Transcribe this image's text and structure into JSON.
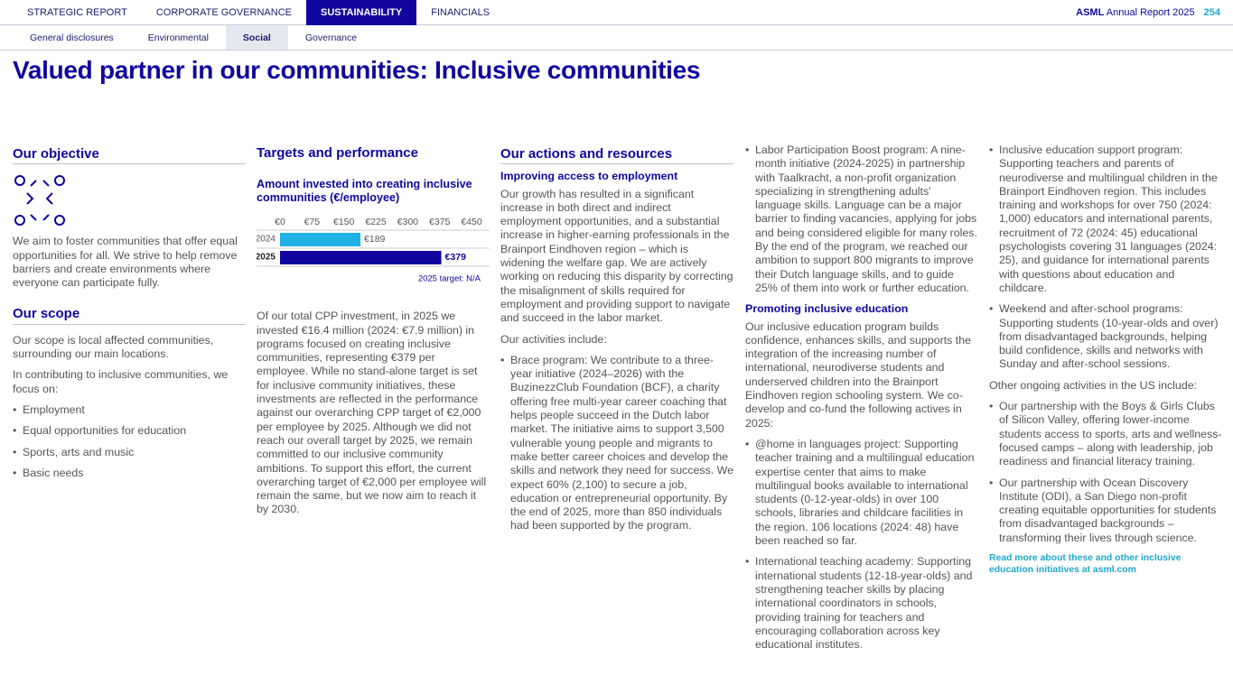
{
  "nav": {
    "tabs": [
      "STRATEGIC REPORT",
      "CORPORATE GOVERNANCE",
      "SUSTAINABILITY",
      "FINANCIALS"
    ],
    "active": 2
  },
  "header": {
    "brand": "ASML",
    "report": "Annual Report 2025",
    "page": "254"
  },
  "subnav": {
    "tabs": [
      "General disclosures",
      "Environmental",
      "Social",
      "Governance"
    ],
    "active": 2
  },
  "title": "Valued partner in our communities: Inclusive communities",
  "objective": {
    "heading": "Our objective",
    "text": "We aim to foster communities that offer equal opportunities for all. We strive to help remove barriers and create environments where everyone can participate fully."
  },
  "scope": {
    "heading": "Our scope",
    "paragraphs": [
      "Our scope is local affected communities, surrounding our main locations.",
      "In contributing to inclusive communities, we focus on:"
    ],
    "bullets": [
      "Employment",
      "Equal opportunities for education",
      "Sports, arts and music",
      "Basic needs"
    ]
  },
  "targets": {
    "heading": "Targets and performance",
    "text": "Of our total CPP investment, in 2025 we invested €16.4 million (2024: €7.9 million) in programs focused on creating inclusive communities, representing €379 per employee. While no stand-alone target is set for inclusive community initiatives, these investments are reflected in the performance against our overarching CPP target of €2,000 per employee by 2025. Although we did not reach our overall target by 2025, we remain committed to our inclusive community ambitions. To support this effort, the current overarching target of €2,000 per employee will remain the same, but we now aim to reach it by 2030."
  },
  "chart_data": {
    "type": "bar",
    "orientation": "horizontal",
    "title": "Amount invested into creating inclusive communities (€/employee)",
    "categories": [
      "2024",
      "2025"
    ],
    "values": [
      189,
      379
    ],
    "value_labels": [
      "€189",
      "€379"
    ],
    "colors": [
      "#1fb1e6",
      "#10069f"
    ],
    "xlim": [
      0,
      450
    ],
    "xticks": [
      {
        "value": 0,
        "label": "€0"
      },
      {
        "value": 75,
        "label": "€75"
      },
      {
        "value": 150,
        "label": "€150"
      },
      {
        "value": 225,
        "label": "€225"
      },
      {
        "value": 300,
        "label": "€300"
      },
      {
        "value": 375,
        "label": "€375"
      },
      {
        "value": 450,
        "label": "€450"
      }
    ],
    "note": "2025 target: N/A"
  },
  "actions": {
    "heading": "Our actions and resources",
    "subheading": "Improving access to employment",
    "paragraphs": [
      "Our growth has resulted in a significant increase in both direct and indirect employment opportunities, and a substantial increase in higher-earning professionals in the Brainport Eindhoven region – which is widening the welfare gap. We are actively working on reducing this disparity by correcting the misalignment of skills required for employment and providing support to navigate and succeed in the labor market.",
      "Our activities include:"
    ],
    "bullets": [
      "Brace program: We contribute to a three-year initiative (2024–2026) with the BuzinezzClub Foundation (BCF), a charity offering free multi-year career coaching that helps people succeed in the Dutch labor market. The initiative aims to support 3,500 vulnerable young people and migrants to make better career choices and develop the skills and network they need for success. We expect 60% (2,100) to secure a job, education or entrepreneurial opportunity. By the end of 2025, more than 850 individuals had been supported by the program."
    ]
  },
  "col4": {
    "bullets": [
      "Labor Participation Boost program: A nine-month initiative (2024-2025) in partnership with Taalkracht, a non-profit organization specializing in strengthening adults' language skills. Language can be a major barrier to finding vacancies, applying for jobs and being considered eligible for many roles. By the end of the program, we reached our ambition to support 800 migrants to improve their Dutch language skills, and to guide 25% of them into work or further education."
    ],
    "subheading": "Promoting inclusive education",
    "text": "Our inclusive education program builds confidence, enhances skills, and supports the integration of the increasing number of international, neurodiverse students and underserved children into the Brainport Eindhoven region schooling system. We co-develop and co-fund the following actives in 2025:",
    "bullets2": [
      "@home in languages project: Supporting teacher training and a multilingual education expertise center that aims to make multilingual books available to international students (0-12-year-olds) in over 100 schools, libraries and childcare facilities in the region. 106 locations (2024: 48) have been reached so far.",
      "International teaching academy: Supporting international students (12-18-year-olds) and strengthening teacher skills by placing international coordinators in schools, providing training for teachers and encouraging collaboration across key educational institutes."
    ]
  },
  "col5": {
    "bullets": [
      "Inclusive education support program: Supporting teachers and parents of neurodiverse and multilingual children in the Brainport Eindhoven region. This includes training and workshops for over 750 (2024: 1,000) educators and international parents, recruitment of 72 (2024: 45) educational psychologists covering 31 languages (2024: 25), and guidance for international parents with questions about education and childcare.",
      "Weekend and after-school programs: Supporting students (10-year-olds and over) from disadvantaged backgrounds, helping build confidence, skills and networks with Sunday and after-school sessions."
    ],
    "text": "Other ongoing activities in the US include:",
    "bullets2": [
      "Our partnership with the Boys & Girls Clubs of Silicon Valley, offering lower-income students access to sports, arts and wellness-focused camps – along with leadership, job readiness and financial literacy training.",
      "Our partnership with Ocean Discovery Institute (ODI), a San Diego non-profit creating equitable opportunities for students from disadvantaged backgrounds – transforming their lives through science."
    ],
    "link": "Read more about these and other inclusive education initiatives at asml.com"
  }
}
